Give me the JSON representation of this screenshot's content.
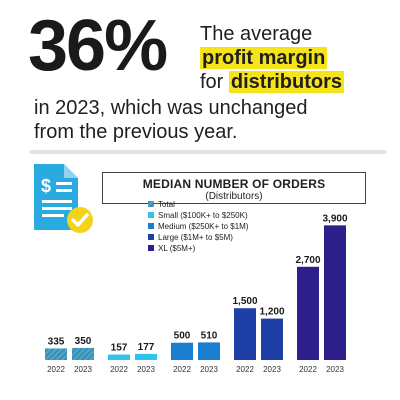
{
  "headline": {
    "percent": "36%",
    "line1": "The average",
    "highlight1": "profit margin",
    "line3_prefix": "for",
    "highlight2": "distributors",
    "line4": "in 2023, which was unchanged",
    "line5": "from the previous year."
  },
  "colors": {
    "highlight": "#f6e41a",
    "icon_blue": "#29abe2",
    "check_yellow": "#f6d21a"
  },
  "icon": "document-check-dollar-icon",
  "chart_data": {
    "type": "bar",
    "title": "MEDIAN NUMBER OF ORDERS",
    "subtitle": "(Distributors)",
    "legend_position": "top-left",
    "grid": false,
    "ylim": [
      0,
      4200
    ],
    "groups": [
      {
        "name": "Total",
        "color": "#4aa3c9",
        "pattern": "hatched",
        "categories": [
          "2022",
          "2023"
        ],
        "values": [
          335,
          350
        ]
      },
      {
        "name": "Small ($100K+ to $250K)",
        "color": "#2ec4ee",
        "categories": [
          "2022",
          "2023"
        ],
        "values": [
          157,
          177
        ]
      },
      {
        "name": "Medium ($250K+ to $1M)",
        "color": "#1a7ed0",
        "categories": [
          "2022",
          "2023"
        ],
        "values": [
          500,
          510
        ]
      },
      {
        "name": "Large ($1M+ to $5M)",
        "color": "#1e3fa6",
        "categories": [
          "2022",
          "2023"
        ],
        "values": [
          1500,
          1200
        ]
      },
      {
        "name": "XL ($5M+)",
        "color": "#2d1f8a",
        "categories": [
          "2022",
          "2023"
        ],
        "values": [
          2700,
          3900
        ]
      }
    ],
    "value_labels": [
      "335",
      "350",
      "157",
      "177",
      "500",
      "510",
      "1,500",
      "1,200",
      "2,700",
      "3,900"
    ]
  }
}
